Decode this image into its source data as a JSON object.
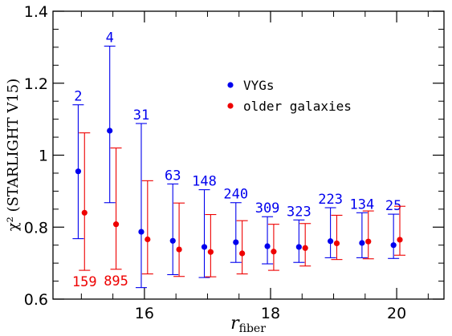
{
  "chart_data": {
    "type": "scatter",
    "xlabel_main": "r",
    "xlabel_sub": "fiber",
    "ylabel": "χ² (STARLIGHT V15)",
    "xlim": [
      14.55,
      20.75
    ],
    "ylim": [
      0.6,
      1.4
    ],
    "x_ticks": [
      16,
      18,
      20
    ],
    "x_minor_step": 0.5,
    "y_ticks": [
      0.6,
      0.8,
      1,
      1.2,
      1.4
    ],
    "y_tick_labels": [
      "0.6",
      "0.8",
      "1",
      "1.2",
      "1.4"
    ],
    "y_minor_step": 0.05,
    "grid": false,
    "legend_position": "top-right",
    "series": [
      {
        "name": "VYGs",
        "color": "#0000ee",
        "label_placement": "above",
        "points": [
          {
            "x": 14.95,
            "y": 0.955,
            "lo": 0.768,
            "hi": 1.14,
            "count": "2"
          },
          {
            "x": 15.45,
            "y": 1.068,
            "lo": 0.868,
            "hi": 1.303,
            "count": "4"
          },
          {
            "x": 15.95,
            "y": 0.787,
            "lo": 0.632,
            "hi": 1.088,
            "count": "31"
          },
          {
            "x": 16.45,
            "y": 0.762,
            "lo": 0.668,
            "hi": 0.92,
            "count": "63"
          },
          {
            "x": 16.95,
            "y": 0.745,
            "lo": 0.66,
            "hi": 0.904,
            "count": "148"
          },
          {
            "x": 17.45,
            "y": 0.758,
            "lo": 0.702,
            "hi": 0.868,
            "count": "240"
          },
          {
            "x": 17.95,
            "y": 0.747,
            "lo": 0.698,
            "hi": 0.829,
            "count": "309"
          },
          {
            "x": 18.45,
            "y": 0.745,
            "lo": 0.702,
            "hi": 0.82,
            "count": "323"
          },
          {
            "x": 18.95,
            "y": 0.761,
            "lo": 0.715,
            "hi": 0.854,
            "count": "223"
          },
          {
            "x": 19.45,
            "y": 0.756,
            "lo": 0.715,
            "hi": 0.84,
            "count": "134"
          },
          {
            "x": 19.95,
            "y": 0.75,
            "lo": 0.713,
            "hi": 0.836,
            "count": "25"
          }
        ]
      },
      {
        "name": "older galaxies",
        "color": "#ee0000",
        "label_placement": "below",
        "points": [
          {
            "x": 15.05,
            "y": 0.84,
            "lo": 0.68,
            "hi": 1.062,
            "count": "159"
          },
          {
            "x": 15.55,
            "y": 0.808,
            "lo": 0.683,
            "hi": 1.02,
            "count": "895"
          },
          {
            "x": 16.05,
            "y": 0.766,
            "lo": 0.67,
            "hi": 0.929,
            "count": ""
          },
          {
            "x": 16.55,
            "y": 0.738,
            "lo": 0.663,
            "hi": 0.867,
            "count": ""
          },
          {
            "x": 17.05,
            "y": 0.731,
            "lo": 0.662,
            "hi": 0.835,
            "count": ""
          },
          {
            "x": 17.55,
            "y": 0.727,
            "lo": 0.67,
            "hi": 0.818,
            "count": ""
          },
          {
            "x": 18.05,
            "y": 0.732,
            "lo": 0.68,
            "hi": 0.808,
            "count": ""
          },
          {
            "x": 18.55,
            "y": 0.742,
            "lo": 0.692,
            "hi": 0.81,
            "count": ""
          },
          {
            "x": 19.05,
            "y": 0.755,
            "lo": 0.71,
            "hi": 0.833,
            "count": ""
          },
          {
            "x": 19.55,
            "y": 0.76,
            "lo": 0.712,
            "hi": 0.845,
            "count": ""
          },
          {
            "x": 20.05,
            "y": 0.765,
            "lo": 0.722,
            "hi": 0.858,
            "count": ""
          }
        ]
      }
    ]
  }
}
